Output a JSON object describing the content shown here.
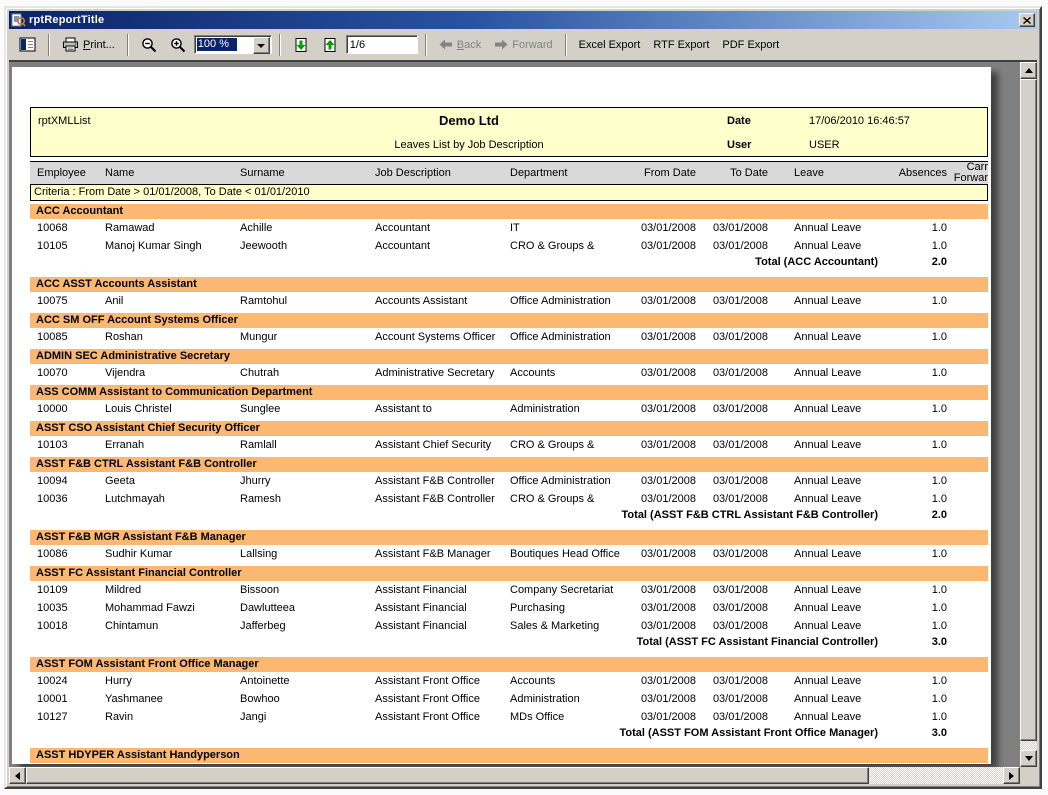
{
  "window": {
    "title": "rptReportTitle"
  },
  "toolbar": {
    "print_label": "Print...",
    "zoom_value": "100 %",
    "page_indicator": "1/6",
    "back_label": "Back",
    "forward_label": "Forward",
    "excel_label": "Excel Export",
    "rtf_label": "RTF Export",
    "pdf_label": "PDF Export"
  },
  "report": {
    "report_name": "rptXMLList",
    "company": "Demo Ltd",
    "subtitle": "Leaves List by Job Description",
    "date_label": "Date",
    "date_value": "17/06/2010 16:46:57",
    "user_label": "User",
    "user_value": "USER",
    "criteria": "Criteria : From Date > 01/01/2008, To Date < 01/01/2010",
    "columns": [
      "Employee",
      "Name",
      "Surname",
      "Job Description",
      "Department",
      "From Date",
      "To Date",
      "Leave",
      "Absences"
    ],
    "carried_forward_column": {
      "line1": "Carr",
      "line2": "Forwar"
    },
    "groups": [
      {
        "header": "ACC Accountant",
        "rows": [
          [
            "10068",
            "Ramawad",
            "Achille",
            "Accountant",
            "IT",
            "03/01/2008",
            "03/01/2008",
            "Annual Leave",
            "1.0"
          ],
          [
            "10105",
            "Manoj Kumar Singh",
            "Jeewooth",
            "Accountant",
            "CRO & Groups &",
            "03/01/2008",
            "03/01/2008",
            "Annual Leave",
            "1.0"
          ]
        ],
        "total_label": "Total (ACC Accountant)",
        "total_value": "2.0"
      },
      {
        "header": "ACC ASST  Accounts Assistant",
        "rows": [
          [
            "10075",
            "Anil",
            "Ramtohul",
            "Accounts Assistant",
            "Office Administration",
            "03/01/2008",
            "03/01/2008",
            "Annual Leave",
            "1.0"
          ]
        ]
      },
      {
        "header": "ACC SM OFF  Account Systems Officer",
        "rows": [
          [
            "10085",
            "Roshan",
            "Mungur",
            "Account Systems Officer",
            "Office Administration",
            "03/01/2008",
            "03/01/2008",
            "Annual Leave",
            "1.0"
          ]
        ]
      },
      {
        "header": "ADMIN  SEC  Administrative Secretary",
        "rows": [
          [
            "10070",
            "Vijendra",
            "Chutrah",
            "Administrative Secretary",
            "Accounts",
            "03/01/2008",
            "03/01/2008",
            "Annual Leave",
            "1.0"
          ]
        ]
      },
      {
        "header": "ASS  COMM Assistant to Communication Department",
        "rows": [
          [
            "10000",
            "Louis Christel",
            "Sunglee",
            "Assistant to",
            "Administration",
            "03/01/2008",
            "03/01/2008",
            "Annual Leave",
            "1.0"
          ]
        ]
      },
      {
        "header": "ASST CSO  Assistant Chief Security Officer",
        "rows": [
          [
            "10103",
            "Erranah",
            "Ramlall",
            "Assistant Chief Security",
            "CRO & Groups &",
            "03/01/2008",
            "03/01/2008",
            "Annual Leave",
            "1.0"
          ]
        ]
      },
      {
        "header": "ASST F&B  CTRL  Assistant F&B Controller",
        "rows": [
          [
            "10094",
            "Geeta",
            "Jhurry",
            "Assistant F&B Controller",
            "Office Administration",
            "03/01/2008",
            "03/01/2008",
            "Annual Leave",
            "1.0"
          ],
          [
            "10036",
            "Lutchmayah",
            "Ramesh",
            "Assistant F&B Controller",
            "CRO & Groups &",
            "03/01/2008",
            "03/01/2008",
            "Annual Leave",
            "1.0"
          ]
        ],
        "total_label": "Total (ASST F&B  CTRL Assistant F&B Controller)",
        "total_value": "2.0"
      },
      {
        "header": "ASST F&B  MGR  Assistant F&B Manager",
        "rows": [
          [
            "10086",
            "Sudhir Kumar",
            "Lallsing",
            "Assistant F&B Manager",
            "Boutiques Head Office",
            "03/01/2008",
            "03/01/2008",
            "Annual Leave",
            "1.0"
          ]
        ]
      },
      {
        "header": "ASST FC  Assistant Financial Controller",
        "rows": [
          [
            "10109",
            "Mildred",
            "Bissoon",
            "Assistant Financial",
            "Company Secretariat",
            "03/01/2008",
            "03/01/2008",
            "Annual Leave",
            "1.0"
          ],
          [
            "10035",
            "Mohammad Fawzi",
            "Dawlutteea",
            "Assistant Financial",
            "Purchasing",
            "03/01/2008",
            "03/01/2008",
            "Annual Leave",
            "1.0"
          ],
          [
            "10018",
            "Chintamun",
            "Jafferbeg",
            "Assistant Financial",
            "Sales & Marketing",
            "03/01/2008",
            "03/01/2008",
            "Annual Leave",
            "1.0"
          ]
        ],
        "total_label": "Total (ASST FC  Assistant Financial Controller)",
        "total_value": "3.0"
      },
      {
        "header": "ASST FOM  Assistant Front Office Manager",
        "rows": [
          [
            "10024",
            "Hurry",
            "Antoinette",
            "Assistant Front Office",
            "Accounts",
            "03/01/2008",
            "03/01/2008",
            "Annual Leave",
            "1.0"
          ],
          [
            "10001",
            "Yashmanee",
            "Bowhoo",
            "Assistant Front Office",
            "Administration",
            "03/01/2008",
            "03/01/2008",
            "Annual Leave",
            "1.0"
          ],
          [
            "10127",
            "Ravin",
            "Jangi",
            "Assistant Front Office",
            "MDs Office",
            "03/01/2008",
            "03/01/2008",
            "Annual Leave",
            "1.0"
          ]
        ],
        "total_label": "Total (ASST FOM Assistant Front Office Manager)",
        "total_value": "3.0"
      },
      {
        "header": "ASST HDYPER  Assistant Handyperson",
        "rows": []
      }
    ]
  },
  "colors": {
    "titlebar_left": "#0A246A",
    "titlebar_right": "#A6CAF0",
    "toolbar_bg": "#D4D0C8",
    "viewer_bg": "#808080",
    "band_orange": "#FBB873",
    "header_yellow": "#FFFFCC",
    "column_header_gray": "#D9D9D9",
    "selection_blue": "#0A246A"
  }
}
